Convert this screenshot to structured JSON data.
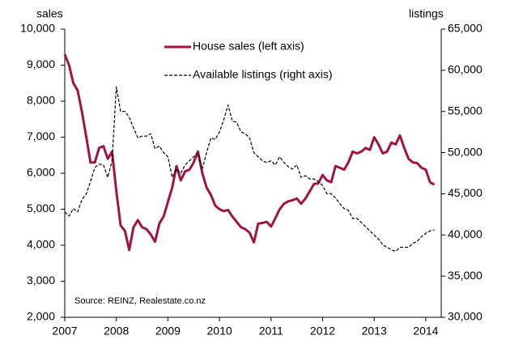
{
  "chart_data": {
    "type": "line",
    "y_label": "sales",
    "y2_label": "listings",
    "annotation": "Source: REINZ, Realestate.co.nz",
    "xlim": [
      2007,
      2014.3
    ],
    "xticks": [
      2007,
      2008,
      2009,
      2010,
      2011,
      2012,
      2013,
      2014
    ],
    "ylim": [
      2000,
      10000
    ],
    "yticks": [
      {
        "value": 2000,
        "label": "2,000"
      },
      {
        "value": 3000,
        "label": "3,000"
      },
      {
        "value": 4000,
        "label": "4,000"
      },
      {
        "value": 5000,
        "label": "5,000"
      },
      {
        "value": 6000,
        "label": "6,000"
      },
      {
        "value": 7000,
        "label": "7,000"
      },
      {
        "value": 8000,
        "label": "8,000"
      },
      {
        "value": 9000,
        "label": "9,000"
      },
      {
        "value": 10000,
        "label": "10,000"
      }
    ],
    "y2lim": [
      30000,
      65000
    ],
    "y2ticks": [
      {
        "value": 30000,
        "label": "30,000"
      },
      {
        "value": 35000,
        "label": "35,000"
      },
      {
        "value": 40000,
        "label": "40,000"
      },
      {
        "value": 45000,
        "label": "45,000"
      },
      {
        "value": 50000,
        "label": "50,000"
      },
      {
        "value": 55000,
        "label": "55,000"
      },
      {
        "value": 60000,
        "label": "60,000"
      },
      {
        "value": 65000,
        "label": "65,000"
      }
    ],
    "x": [
      2007,
      2007.083,
      2007.167,
      2007.25,
      2007.333,
      2007.417,
      2007.5,
      2007.583,
      2007.667,
      2007.75,
      2007.833,
      2007.917,
      2008,
      2008.083,
      2008.167,
      2008.25,
      2008.333,
      2008.417,
      2008.5,
      2008.583,
      2008.667,
      2008.75,
      2008.833,
      2008.917,
      2009,
      2009.083,
      2009.167,
      2009.25,
      2009.333,
      2009.417,
      2009.5,
      2009.583,
      2009.667,
      2009.75,
      2009.833,
      2009.917,
      2010,
      2010.083,
      2010.167,
      2010.25,
      2010.333,
      2010.417,
      2010.5,
      2010.583,
      2010.667,
      2010.75,
      2010.833,
      2010.917,
      2011,
      2011.083,
      2011.167,
      2011.25,
      2011.333,
      2011.417,
      2011.5,
      2011.583,
      2011.667,
      2011.75,
      2011.833,
      2011.917,
      2012,
      2012.083,
      2012.167,
      2012.25,
      2012.333,
      2012.417,
      2012.5,
      2012.583,
      2012.667,
      2012.75,
      2012.833,
      2012.917,
      2013,
      2013.083,
      2013.167,
      2013.25,
      2013.333,
      2013.417,
      2013.5,
      2013.583,
      2013.667,
      2013.75,
      2013.833,
      2013.917,
      2014,
      2014.083,
      2014.167
    ],
    "series": [
      {
        "name": "House sales (left axis)",
        "color": "#a0153e",
        "dash": false,
        "axis": "y",
        "values": [
          9300,
          9000,
          8500,
          8300,
          7700,
          7000,
          6300,
          6300,
          6700,
          6750,
          6400,
          6600,
          5500,
          4550,
          4400,
          3870,
          4500,
          4700,
          4500,
          4450,
          4300,
          4100,
          4600,
          4800,
          5200,
          5600,
          6200,
          5800,
          6050,
          6100,
          6300,
          6600,
          6000,
          5600,
          5400,
          5100,
          5000,
          4950,
          4980,
          4800,
          4650,
          4500,
          4450,
          4350,
          4080,
          4600,
          4620,
          4650,
          4520,
          4750,
          5000,
          5150,
          5220,
          5250,
          5300,
          5150,
          5300,
          5500,
          5700,
          5720,
          5950,
          5800,
          5750,
          6200,
          6150,
          6100,
          6300,
          6600,
          6550,
          6600,
          6700,
          6650,
          7000,
          6800,
          6550,
          6600,
          6850,
          6800,
          7050,
          6700,
          6400,
          6300,
          6280,
          6150,
          6100,
          5750,
          5680
        ]
      },
      {
        "name": "Available listings (right axis)",
        "color": "#000000",
        "dash": true,
        "axis": "y2",
        "values": [
          42800,
          42300,
          43200,
          42800,
          44300,
          45000,
          46500,
          48200,
          48600,
          48500,
          47000,
          49000,
          58000,
          55000,
          55000,
          54300,
          53000,
          51800,
          52000,
          52000,
          52300,
          50500,
          50800,
          50000,
          49500,
          47000,
          48000,
          47500,
          48500,
          49000,
          49500,
          50000,
          48000,
          50000,
          51800,
          51600,
          52500,
          54000,
          55800,
          53800,
          53700,
          52500,
          52300,
          51800,
          50000,
          49500,
          49000,
          48800,
          49000,
          48500,
          49500,
          48800,
          48300,
          48000,
          48500,
          47000,
          47200,
          46800,
          46800,
          46500,
          46000,
          45000,
          45000,
          44500,
          43800,
          43200,
          43000,
          42000,
          42000,
          41500,
          41000,
          40500,
          40000,
          39500,
          38800,
          38500,
          38200,
          38000,
          38500,
          38500,
          38500,
          39000,
          39200,
          39800,
          40200,
          40500,
          40600
        ]
      }
    ]
  }
}
